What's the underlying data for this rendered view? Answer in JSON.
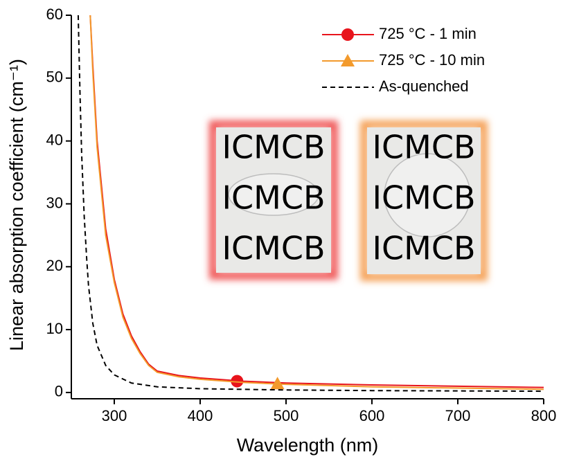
{
  "chart_data": {
    "type": "line",
    "x_label": "Wavelength (nm)",
    "y_label": "Linear absorption coefficient (cm⁻¹)",
    "xlim": [
      250,
      800
    ],
    "xticks": [
      300,
      400,
      500,
      600,
      700,
      800
    ],
    "ylim": [
      -1,
      60
    ],
    "yticks": [
      0,
      10,
      20,
      30,
      40,
      50,
      60
    ],
    "legend": "top-right",
    "series": [
      {
        "name": "725 °C - 1 min",
        "color": "#e8141c",
        "dash": "solid",
        "marker": "circle",
        "x": [
          272,
          275,
          280,
          290,
          300,
          310,
          320,
          330,
          340,
          350,
          375,
          400,
          450,
          500,
          600,
          700,
          800
        ],
        "values": [
          60,
          52,
          40,
          26,
          18,
          12.5,
          9,
          6.5,
          4.5,
          3.4,
          2.7,
          2.3,
          1.8,
          1.5,
          1.2,
          1.0,
          0.8
        ],
        "marker_point": {
          "x": 443,
          "y": 1.8
        }
      },
      {
        "name": "725 °C - 10 min",
        "color": "#f39a2c",
        "dash": "solid",
        "marker": "triangle",
        "x": [
          272,
          275,
          280,
          290,
          300,
          310,
          320,
          330,
          340,
          350,
          375,
          400,
          450,
          500,
          600,
          700,
          800
        ],
        "values": [
          60,
          51,
          39,
          25,
          17.5,
          12,
          8.6,
          6.2,
          4.3,
          3.2,
          2.5,
          2.1,
          1.6,
          1.3,
          0.9,
          0.7,
          0.5
        ],
        "marker_point": {
          "x": 490,
          "y": 1.4
        }
      },
      {
        "name": "As-quenched",
        "color": "#000000",
        "dash": "dashed",
        "marker": "none",
        "x": [
          258,
          260,
          262,
          265,
          268,
          270,
          275,
          280,
          290,
          300,
          320,
          350,
          400,
          500,
          600,
          700,
          800
        ],
        "values": [
          60,
          48,
          38,
          28,
          21,
          17,
          11,
          7.5,
          4.3,
          2.8,
          1.5,
          0.9,
          0.6,
          0.4,
          0.3,
          0.25,
          0.2
        ]
      }
    ],
    "insets": [
      {
        "glow": "#f05a5a",
        "lines": [
          "ICMCB",
          "ICMCB",
          "ICMCB"
        ]
      },
      {
        "glow": "#f5a35a",
        "lines": [
          "ICMCB",
          "ICMCB",
          "ICMCB"
        ]
      }
    ]
  }
}
